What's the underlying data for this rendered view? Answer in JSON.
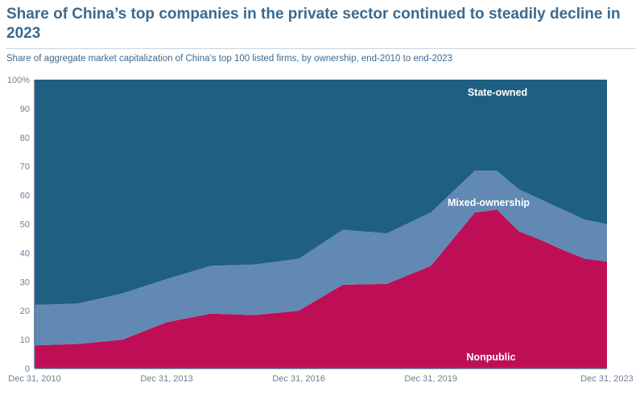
{
  "chart_data": {
    "type": "area",
    "stacked": true,
    "title": "Share of China’s top companies in the private sector continued to steadily decline in 2023",
    "subtitle": "Share of aggregate market capitalization of China’s top 100 listed firms, by ownership, end-2010 to end-2023",
    "x": [
      2010,
      2011,
      2012,
      2013,
      2014,
      2015,
      2016,
      2017,
      2018,
      2019,
      2020,
      2020.5,
      2021,
      2021.5,
      2022,
      2022.5,
      2023
    ],
    "series": [
      {
        "name": "Nonpublic",
        "color": "#be0f56",
        "values": [
          8,
          8.5,
          10,
          16,
          19,
          18.5,
          20,
          29,
          29.3,
          35.5,
          54,
          55,
          47.5,
          44.5,
          41,
          38,
          37
        ]
      },
      {
        "name": "Mixed-ownership",
        "color": "#6189b3",
        "values": [
          14,
          14,
          16,
          15,
          16.5,
          17.5,
          18,
          19,
          17.5,
          18.5,
          14.5,
          13.5,
          14.5,
          14,
          14,
          13.5,
          13
        ]
      },
      {
        "name": "State-owned",
        "color": "#1e5f82",
        "values": [
          78,
          77.5,
          74,
          69,
          64.5,
          64,
          62,
          52,
          53.2,
          46,
          31.5,
          31.5,
          38,
          41.5,
          45,
          48.5,
          50
        ]
      }
    ],
    "ylim": [
      0,
      100
    ],
    "yticks": [
      "0",
      "10",
      "20",
      "30",
      "40",
      "50",
      "60",
      "70",
      "80",
      "90",
      "100%"
    ],
    "xticks": [
      {
        "value": 2010,
        "label": "Dec 31, 2010"
      },
      {
        "value": 2013,
        "label": "Dec 31, 2013"
      },
      {
        "value": 2016,
        "label": "Dec 31, 2016"
      },
      {
        "value": 2019,
        "label": "Dec 31, 2019"
      },
      {
        "value": 2023,
        "label": "Dec 31, 2023"
      }
    ],
    "xlim": [
      2010,
      2023
    ],
    "grid": false,
    "legend": "inline labels"
  }
}
